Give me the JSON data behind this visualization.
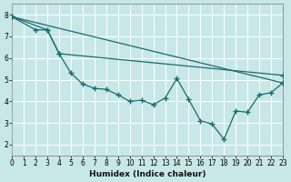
{
  "xlabel": "Humidex (Indice chaleur)",
  "background_color": "#c8e8e8",
  "grid_color": "#ffffff",
  "line_color": "#1a6b6b",
  "xlim": [
    0,
    23
  ],
  "ylim": [
    1.5,
    8.5
  ],
  "xticks": [
    0,
    1,
    2,
    3,
    4,
    5,
    6,
    7,
    8,
    9,
    10,
    11,
    12,
    13,
    14,
    15,
    16,
    17,
    18,
    19,
    20,
    21,
    22,
    23
  ],
  "yticks": [
    2,
    3,
    4,
    5,
    6,
    7,
    8
  ],
  "series1_x": [
    0,
    2,
    3,
    4,
    5,
    6,
    7,
    8,
    9,
    10,
    11,
    12,
    13,
    14,
    15,
    16,
    17,
    18,
    19,
    20,
    21,
    22,
    23
  ],
  "series1_y": [
    7.9,
    7.3,
    7.3,
    6.2,
    5.3,
    4.8,
    4.6,
    4.55,
    4.3,
    4.0,
    4.05,
    3.85,
    4.15,
    5.05,
    4.1,
    3.1,
    2.95,
    2.25,
    3.55,
    3.5,
    4.3,
    4.4,
    4.85
  ],
  "series2_x": [
    0,
    3,
    4,
    23
  ],
  "series2_y": [
    7.9,
    7.3,
    6.2,
    5.2
  ],
  "series3_x": [
    0,
    23
  ],
  "series3_y": [
    7.9,
    4.85
  ]
}
